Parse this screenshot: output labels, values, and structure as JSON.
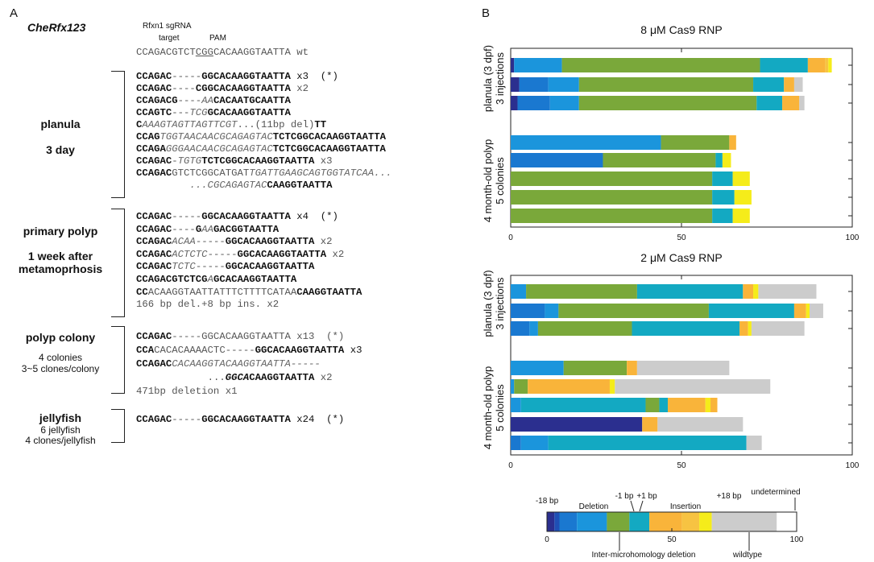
{
  "panel_a": {
    "letter": "A",
    "gene": "CheRfx123",
    "sg_label_1": "Rfxn1 sgRNA",
    "sg_label_2": "target",
    "pam_label": "PAM",
    "wt_line": [
      {
        "t": "CCAGACGTCT",
        "s": "g"
      },
      {
        "t": "CGG",
        "s": "gu"
      },
      {
        "t": "CACAAGGTAATTA wt",
        "s": "g"
      }
    ],
    "groups": [
      {
        "title_1": "planula",
        "title_2": "3 day",
        "sub": "",
        "lines": [
          [
            {
              "t": "CCAGAC",
              "s": "b"
            },
            {
              "t": "-----",
              "s": "g"
            },
            {
              "t": "GGCACAAGGTAATTA",
              "s": "b"
            },
            {
              "t": " x3  (*)",
              "s": "n"
            }
          ],
          [
            {
              "t": "CCAGAC",
              "s": "b"
            },
            {
              "t": "----",
              "s": "g"
            },
            {
              "t": "CGGCACAAGGTAATTA",
              "s": "b"
            },
            {
              "t": " x2",
              "s": "g"
            }
          ],
          [
            {
              "t": "CCAGACG",
              "s": "b"
            },
            {
              "t": "----",
              "s": "g"
            },
            {
              "t": "AA",
              "s": "i"
            },
            {
              "t": "CACAATGCAATTA",
              "s": "b"
            }
          ],
          [
            {
              "t": "CCAGTC",
              "s": "b"
            },
            {
              "t": "---",
              "s": "g"
            },
            {
              "t": "TCG",
              "s": "i"
            },
            {
              "t": "GCACAAGGTAATTA",
              "s": "b"
            }
          ],
          [
            {
              "t": "C",
              "s": "b"
            },
            {
              "t": "AAAGTAGTTAGTTCGT",
              "s": "i"
            },
            {
              "t": "...(11bp del)",
              "s": "g"
            },
            {
              "t": "TT",
              "s": "b"
            }
          ],
          [
            {
              "t": "CCAG",
              "s": "b"
            },
            {
              "t": "TGGTAACAACGCAGAGTAC",
              "s": "i"
            },
            {
              "t": "TCTCGGCACAAGGTAATTA",
              "s": "b"
            }
          ],
          [
            {
              "t": "CCAGA",
              "s": "b"
            },
            {
              "t": "GGGAACAACGCAGAGTAC",
              "s": "i"
            },
            {
              "t": "TCTCGGCACAAGGTAATTA",
              "s": "b"
            }
          ],
          [
            {
              "t": "CCAGAC",
              "s": "b"
            },
            {
              "t": "-",
              "s": "g"
            },
            {
              "t": "TGTG",
              "s": "i"
            },
            {
              "t": "TCTCGGCACAAGGTAATTA",
              "s": "b"
            },
            {
              "t": " x3",
              "s": "g"
            }
          ],
          [
            {
              "t": "CCAGAC",
              "s": "b"
            },
            {
              "t": "GTCTCGGCATGAT",
              "s": "g"
            },
            {
              "t": "TGATTGAAGCAGTGGTATCAA...",
              "s": "i"
            }
          ],
          [
            {
              "t": "         ",
              "s": "g"
            },
            {
              "t": "...CGCAGAGTAC",
              "s": "i"
            },
            {
              "t": "CAAGGTAATTA",
              "s": "b"
            }
          ]
        ]
      },
      {
        "title_1": "primary polyp",
        "title_2": "1 week after",
        "title_3": "metamoprhosis",
        "sub": "",
        "lines": [
          [
            {
              "t": "CCAGAC",
              "s": "b"
            },
            {
              "t": "-----",
              "s": "g"
            },
            {
              "t": "GGCACAAGGTAATTA",
              "s": "b"
            },
            {
              "t": " x4  (*)",
              "s": "n"
            }
          ],
          [
            {
              "t": "CCAGAC",
              "s": "b"
            },
            {
              "t": "----",
              "s": "g"
            },
            {
              "t": "G",
              "s": "b"
            },
            {
              "t": "AA",
              "s": "i"
            },
            {
              "t": "G",
              "s": "b"
            },
            {
              "t": "ACGGTAATTA",
              "s": "b"
            }
          ],
          [
            {
              "t": "CCAGAC",
              "s": "b"
            },
            {
              "t": "ACAA",
              "s": "i"
            },
            {
              "t": "-----",
              "s": "g"
            },
            {
              "t": "GGCACAAGGTAATTA",
              "s": "b"
            },
            {
              "t": " x2",
              "s": "g"
            }
          ],
          [
            {
              "t": "CCAGAC",
              "s": "b"
            },
            {
              "t": "ACTCTC",
              "s": "i"
            },
            {
              "t": "-----",
              "s": "g"
            },
            {
              "t": "GGCACAAGGTAATTA",
              "s": "b"
            },
            {
              "t": " x2",
              "s": "g"
            }
          ],
          [
            {
              "t": "CCAGAC",
              "s": "b"
            },
            {
              "t": "TCTC",
              "s": "i"
            },
            {
              "t": "-----",
              "s": "g"
            },
            {
              "t": "GGCACAAGGTAATTA",
              "s": "b"
            }
          ],
          [
            {
              "t": "CCAGACGTCTCG",
              "s": "b"
            },
            {
              "t": "A",
              "s": "i"
            },
            {
              "t": "GCACAAGGTAATTA",
              "s": "b"
            }
          ],
          [
            {
              "t": "CC",
              "s": "b"
            },
            {
              "t": "ACAAGGTAATTATTTCTTTTCATAA",
              "s": "g"
            },
            {
              "t": "CAAGGTAATTA",
              "s": "b"
            }
          ],
          [
            {
              "t": "166 bp del.+8 bp ins. x2",
              "s": "g"
            }
          ]
        ]
      },
      {
        "title_1": "polyp colony",
        "sub_1": "4 colonies",
        "sub_2": "3~5 clones/colony",
        "lines": [
          [
            {
              "t": "CCAGAC",
              "s": "b"
            },
            {
              "t": "-----GGCACAAGGTAATTA x13  (*)",
              "s": "g"
            }
          ],
          [
            {
              "t": "CCA",
              "s": "b"
            },
            {
              "t": "CACACAAAACTC",
              "s": "g"
            },
            {
              "t": "-----",
              "s": "g"
            },
            {
              "t": "GGCACAAGGTAATTA",
              "s": "b"
            },
            {
              "t": " x3",
              "s": "n"
            }
          ],
          [
            {
              "t": "CCAGAC",
              "s": "b"
            },
            {
              "t": "CACAAGGTACAAGGTAATTA-----",
              "s": "i"
            }
          ],
          [
            {
              "t": "            ",
              "s": "g"
            },
            {
              "t": "...",
              "s": "g"
            },
            {
              "t": "GGCA",
              "s": "bi"
            },
            {
              "t": "CAAGGTAATTA",
              "s": "b"
            },
            {
              "t": " x2",
              "s": "g"
            }
          ],
          [
            {
              "t": "471bp deletion x1",
              "s": "g"
            }
          ]
        ]
      },
      {
        "title_1": "jellyfish",
        "sub_1": "6 jellyfish",
        "sub_2": "4 clones/jellyfish",
        "lines": [
          [
            {
              "t": "CCAGAC",
              "s": "b"
            },
            {
              "t": "-----",
              "s": "g"
            },
            {
              "t": "GGCACAAGGTAATTA",
              "s": "b"
            },
            {
              "t": " x24  (*)",
              "s": "n"
            }
          ]
        ]
      }
    ]
  },
  "panel_b": {
    "letter": "B",
    "colors": {
      "del18": "#2b2f8f",
      "del_mid1": "#1f4fb5",
      "del_mid2": "#1a78d0",
      "del_mid3": "#1b95dc",
      "inter_micro": "#7aa83a",
      "del1": "#13a9c2",
      "ins1": "#f9b43a",
      "ins_mid": "#f7c342",
      "ins18": "#f5ec1a",
      "undetermined": "#ffffff",
      "wildtype": "#cccccc"
    },
    "legend": {
      "del18": "-18 bp",
      "deletion": "Deletion",
      "del1": "-1 bp",
      "ins1": "+1 bp",
      "insertion": "Insertion",
      "ins18": "+18 bp",
      "undetermined": "undetermined",
      "inter_micro": "Inter-microhomology deletion",
      "wildtype": "wildtype",
      "ticks": [
        "0",
        "50",
        "100"
      ]
    }
  },
  "chart_data": [
    {
      "type": "bar",
      "orientation": "horizontal-stacked",
      "title": "8 μM Cas9 RNP",
      "xlim": [
        0,
        100
      ],
      "xticks": [
        "0",
        "50",
        "100"
      ],
      "groups": [
        {
          "label_1": "planula (3 dpf)",
          "label_2": "3 injections"
        },
        {
          "label_1": "4 month-old polyp",
          "label_2": "5 colonies"
        }
      ],
      "rows": [
        {
          "group": 0,
          "segments": [
            [
              "del18",
              1
            ],
            [
              "del_mid3",
              14
            ],
            [
              "inter_micro",
              58
            ],
            [
              "del1",
              14
            ],
            [
              "ins1",
              5
            ],
            [
              "ins_mid",
              1
            ],
            [
              "ins18",
              1
            ]
          ]
        },
        {
          "group": 0,
          "segments": [
            [
              "del18",
              2.5
            ],
            [
              "del_mid2",
              8.5
            ],
            [
              "del_mid3",
              9
            ],
            [
              "inter_micro",
              51
            ],
            [
              "del1",
              9
            ],
            [
              "ins1",
              3
            ],
            [
              "wildtype",
              2.5
            ]
          ]
        },
        {
          "group": 0,
          "segments": [
            [
              "del18",
              2
            ],
            [
              "del_mid2",
              9.5
            ],
            [
              "del_mid3",
              8.5
            ],
            [
              "inter_micro",
              52
            ],
            [
              "del1",
              7.5
            ],
            [
              "ins1",
              5
            ],
            [
              "wildtype",
              1.5
            ]
          ]
        },
        {
          "group": 1,
          "segments": [
            [
              "del_mid3",
              44
            ],
            [
              "inter_micro",
              20
            ],
            [
              "ins1",
              2
            ]
          ]
        },
        {
          "group": 1,
          "segments": [
            [
              "del_mid2",
              27
            ],
            [
              "inter_micro",
              33
            ],
            [
              "del1",
              2
            ],
            [
              "ins18",
              2.5
            ]
          ]
        },
        {
          "group": 1,
          "segments": [
            [
              "inter_micro",
              59
            ],
            [
              "del1",
              6
            ],
            [
              "ins18",
              5
            ]
          ]
        },
        {
          "group": 1,
          "segments": [
            [
              "inter_micro",
              59
            ],
            [
              "del1",
              6.5
            ],
            [
              "ins18",
              5
            ]
          ]
        },
        {
          "group": 1,
          "segments": [
            [
              "inter_micro",
              59
            ],
            [
              "del1",
              6
            ],
            [
              "ins18",
              5
            ]
          ]
        }
      ]
    },
    {
      "type": "bar",
      "orientation": "horizontal-stacked",
      "title": "2 μM Cas9 RNP",
      "xlim": [
        0,
        100
      ],
      "xticks": [
        "0",
        "50",
        "100"
      ],
      "groups": [
        {
          "label_1": "planula (3 dpf)",
          "label_2": "3 injections"
        },
        {
          "label_1": "4 month-old polyp",
          "label_2": "5 colonies"
        }
      ],
      "rows": [
        {
          "group": 0,
          "segments": [
            [
              "del_mid3",
              4.5
            ],
            [
              "inter_micro",
              32.5
            ],
            [
              "del1",
              31
            ],
            [
              "ins1",
              3
            ],
            [
              "ins18",
              1.5
            ],
            [
              "wildtype",
              17
            ]
          ]
        },
        {
          "group": 0,
          "segments": [
            [
              "del_mid2",
              10
            ],
            [
              "del_mid3",
              4
            ],
            [
              "inter_micro",
              44
            ],
            [
              "del1",
              25
            ],
            [
              "ins1",
              3.5
            ],
            [
              "ins18",
              1
            ],
            [
              "wildtype",
              4
            ]
          ]
        },
        {
          "group": 0,
          "segments": [
            [
              "del_mid2",
              5.5
            ],
            [
              "del_mid3",
              2.5
            ],
            [
              "inter_micro",
              27.5
            ],
            [
              "del1",
              31.5
            ],
            [
              "ins1",
              2.5
            ],
            [
              "ins18",
              1
            ],
            [
              "wildtype",
              15.5
            ]
          ]
        },
        {
          "group": 1,
          "segments": [
            [
              "del_mid3",
              15.5
            ],
            [
              "inter_micro",
              18.5
            ],
            [
              "ins1",
              3
            ],
            [
              "wildtype",
              27
            ]
          ]
        },
        {
          "group": 1,
          "segments": [
            [
              "del_mid3",
              1
            ],
            [
              "inter_micro",
              4
            ],
            [
              "ins1",
              24
            ],
            [
              "ins18",
              1.5
            ],
            [
              "wildtype",
              45.5
            ]
          ]
        },
        {
          "group": 1,
          "segments": [
            [
              "del_mid3",
              3
            ],
            [
              "del1",
              36.5
            ],
            [
              "inter_micro",
              4
            ],
            [
              "del1",
              2.5
            ],
            [
              "ins1",
              11
            ],
            [
              "ins18",
              1.5
            ],
            [
              "ins1",
              2
            ]
          ]
        },
        {
          "group": 1,
          "segments": [
            [
              "del18",
              38.5
            ],
            [
              "ins1",
              4.5
            ],
            [
              "wildtype",
              25
            ]
          ]
        },
        {
          "group": 1,
          "segments": [
            [
              "del_mid2",
              3
            ],
            [
              "del_mid3",
              8
            ],
            [
              "del1",
              58
            ],
            [
              "wildtype",
              4.5
            ]
          ]
        }
      ]
    }
  ]
}
